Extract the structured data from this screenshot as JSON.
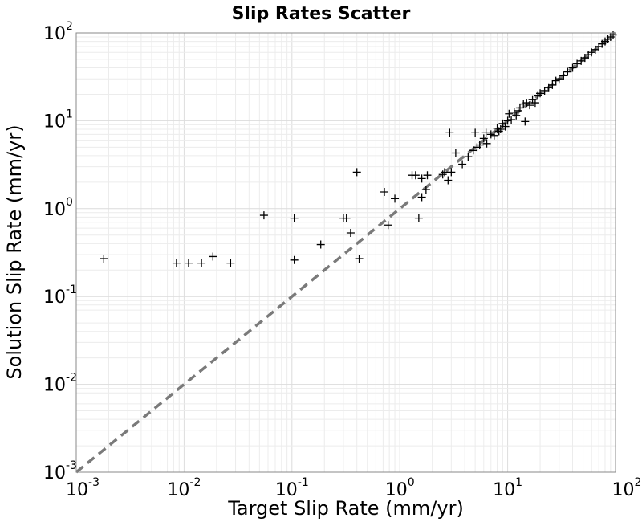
{
  "chart_data": {
    "type": "scatter",
    "title": "Slip Rates Scatter",
    "xlabel": "Target Slip Rate (mm/yr)",
    "ylabel": "Solution Slip Rate (mm/yr)",
    "xscale": "log",
    "yscale": "log",
    "xlim": [
      0.001,
      100
    ],
    "ylim": [
      0.001,
      100
    ],
    "grid": true,
    "marker": "plus",
    "marker_color": "#000000",
    "reference_line": {
      "style": "dashed",
      "color": "#7a7a7a",
      "from": [
        0.001,
        0.001
      ],
      "to": [
        100,
        100
      ]
    },
    "x_ticks": [
      {
        "base": "10",
        "exp": "-3"
      },
      {
        "base": "10",
        "exp": "-2"
      },
      {
        "base": "10",
        "exp": "-1"
      },
      {
        "base": "10",
        "exp": "0"
      },
      {
        "base": "10",
        "exp": "1"
      },
      {
        "base": "10",
        "exp": "2"
      }
    ],
    "y_ticks": [
      {
        "base": "10",
        "exp": "-3"
      },
      {
        "base": "10",
        "exp": "-2"
      },
      {
        "base": "10",
        "exp": "-1"
      },
      {
        "base": "10",
        "exp": "0"
      },
      {
        "base": "10",
        "exp": "1"
      },
      {
        "base": "10",
        "exp": "2"
      }
    ],
    "points": [
      [
        0.0018,
        0.27
      ],
      [
        0.0085,
        0.24
      ],
      [
        0.011,
        0.24
      ],
      [
        0.0145,
        0.24
      ],
      [
        0.0185,
        0.285
      ],
      [
        0.027,
        0.24
      ],
      [
        0.055,
        0.84
      ],
      [
        0.105,
        0.78
      ],
      [
        0.105,
        0.26
      ],
      [
        0.185,
        0.39
      ],
      [
        0.3,
        0.78
      ],
      [
        0.32,
        0.78
      ],
      [
        0.35,
        0.53
      ],
      [
        0.42,
        0.27
      ],
      [
        0.4,
        2.6
      ],
      [
        0.72,
        1.55
      ],
      [
        0.78,
        0.65
      ],
      [
        0.9,
        1.3
      ],
      [
        1.3,
        2.4
      ],
      [
        1.4,
        2.4
      ],
      [
        1.5,
        0.78
      ],
      [
        1.6,
        1.35
      ],
      [
        1.6,
        2.2
      ],
      [
        1.75,
        1.65
      ],
      [
        1.8,
        2.4
      ],
      [
        2.5,
        2.45
      ],
      [
        2.6,
        2.6
      ],
      [
        2.8,
        2.1
      ],
      [
        2.9,
        7.3
      ],
      [
        3.0,
        2.6
      ],
      [
        3.3,
        4.3
      ],
      [
        3.8,
        3.2
      ],
      [
        4.3,
        3.9
      ],
      [
        4.8,
        4.6
      ],
      [
        5.0,
        7.3
      ],
      [
        5.2,
        5.0
      ],
      [
        5.5,
        5.3
      ],
      [
        6.0,
        6.3
      ],
      [
        6.3,
        7.3
      ],
      [
        6.4,
        5.5
      ],
      [
        7.0,
        7.0
      ],
      [
        7.5,
        6.8
      ],
      [
        8.0,
        8.2
      ],
      [
        8.3,
        7.6
      ],
      [
        8.6,
        8.0
      ],
      [
        9.0,
        9.3
      ],
      [
        9.5,
        8.6
      ],
      [
        10.0,
        10.0
      ],
      [
        10.3,
        12.0
      ],
      [
        10.8,
        10.3
      ],
      [
        11.5,
        12.5
      ],
      [
        12.0,
        11.5
      ],
      [
        12.5,
        13.0
      ],
      [
        13.0,
        14.0
      ],
      [
        14.0,
        15.5
      ],
      [
        15.0,
        16.0
      ],
      [
        14.5,
        9.8
      ],
      [
        16.0,
        15.0
      ],
      [
        17.0,
        17.5
      ],
      [
        18.0,
        16.0
      ],
      [
        19.0,
        19.5
      ],
      [
        20.0,
        20.5
      ],
      [
        22.0,
        22.0
      ],
      [
        24.0,
        24.0
      ],
      [
        26.0,
        25.5
      ],
      [
        28.0,
        28.5
      ],
      [
        30.0,
        30.0
      ],
      [
        33.0,
        32.5
      ],
      [
        36.0,
        36.0
      ],
      [
        40.0,
        40.0
      ],
      [
        44.0,
        44.5
      ],
      [
        48.0,
        48.0
      ],
      [
        52.0,
        52.0
      ],
      [
        56.0,
        56.5
      ],
      [
        60.0,
        60.0
      ],
      [
        65.0,
        64.5
      ],
      [
        70.0,
        70.0
      ],
      [
        75.0,
        75.0
      ],
      [
        80.0,
        80.0
      ],
      [
        85.0,
        85.0
      ],
      [
        90.0,
        90.0
      ],
      [
        95.0,
        95.0
      ]
    ]
  }
}
